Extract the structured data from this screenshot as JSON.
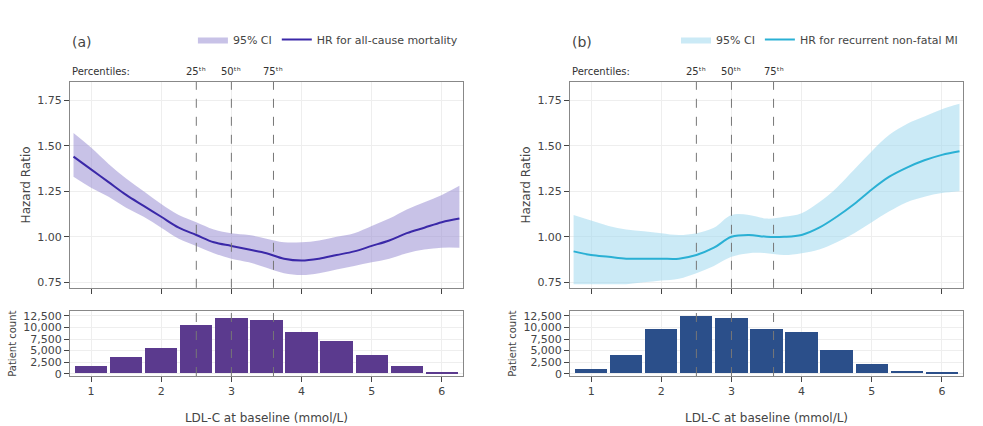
{
  "chart_data": [
    {
      "type": "line",
      "title": "(a)",
      "x": [
        0.75,
        1.0,
        1.25,
        1.5,
        1.75,
        2.0,
        2.25,
        2.5,
        2.75,
        3.0,
        3.25,
        3.5,
        3.75,
        4.0,
        4.25,
        4.5,
        4.75,
        5.0,
        5.25,
        5.5,
        5.75,
        6.0,
        6.25
      ],
      "series": [
        {
          "name": "HR for all-cause mortality",
          "color": "#3a28a8",
          "values": [
            1.44,
            1.37,
            1.3,
            1.23,
            1.17,
            1.11,
            1.05,
            1.01,
            0.97,
            0.95,
            0.93,
            0.91,
            0.88,
            0.87,
            0.88,
            0.9,
            0.92,
            0.95,
            0.98,
            1.02,
            1.05,
            1.08,
            1.1
          ],
          "ci_name": "95% CI",
          "ci_color": "#9b8fd4",
          "lower": [
            1.33,
            1.27,
            1.22,
            1.16,
            1.11,
            1.05,
            0.99,
            0.95,
            0.91,
            0.88,
            0.86,
            0.83,
            0.8,
            0.79,
            0.8,
            0.82,
            0.84,
            0.86,
            0.88,
            0.91,
            0.93,
            0.94,
            0.94
          ],
          "upper": [
            1.57,
            1.49,
            1.4,
            1.32,
            1.25,
            1.18,
            1.12,
            1.08,
            1.04,
            1.02,
            1.01,
            0.99,
            0.97,
            0.97,
            0.98,
            1.0,
            1.02,
            1.06,
            1.1,
            1.15,
            1.19,
            1.23,
            1.28
          ]
        }
      ],
      "ylabel": "Hazard Ratio",
      "xlim": [
        0.7,
        6.3
      ],
      "xticks": [
        1,
        2,
        3,
        4,
        5,
        6
      ],
      "ylim": [
        0.72,
        1.85
      ],
      "yticks": [
        0.75,
        {
          "value": 1.0,
          "label": "1.00"
        },
        1.25,
        {
          "value": 1.5,
          "label": "1.50"
        },
        1.75
      ],
      "tick_labels": "y",
      "grid": true,
      "legend": "top",
      "percentile_label": "Percentiles:",
      "percentiles": [
        {
          "value": 2.5,
          "label": "25ᵗʰ"
        },
        {
          "value": 3.0,
          "label": "50ᵗʰ"
        },
        {
          "value": 3.6,
          "label": "75ᵗʰ"
        }
      ]
    },
    {
      "type": "histogram",
      "bins": [
        0.75,
        1.25,
        1.75,
        2.25,
        2.75,
        3.25,
        3.75,
        4.25,
        4.75,
        5.25,
        5.75,
        6.25
      ],
      "values": [
        1500,
        3500,
        5500,
        10500,
        12000,
        11500,
        9000,
        7000,
        4000,
        1500,
        300
      ],
      "color": "#5b3a8e",
      "xlabel": "LDL-C at baseline (mmol/L)",
      "ylabel": "Patient count",
      "xlim": [
        0.7,
        6.3
      ],
      "xticks": [
        1,
        2,
        3,
        4,
        5,
        6
      ],
      "ylim": [
        -500,
        13500
      ],
      "yticks": [
        0,
        {
          "value": 2500,
          "label": "2,500"
        },
        {
          "value": 5000,
          "label": "5,000"
        },
        {
          "value": 7500,
          "label": "7,500"
        },
        {
          "value": 10000,
          "label": "10,000"
        },
        {
          "value": 12500,
          "label": "12,500"
        }
      ],
      "grid": true,
      "percentiles": [
        2.5,
        3.0,
        3.6
      ]
    },
    {
      "type": "line",
      "title": "(b)",
      "x": [
        0.75,
        1.0,
        1.25,
        1.5,
        1.75,
        2.0,
        2.25,
        2.5,
        2.75,
        3.0,
        3.25,
        3.5,
        3.75,
        4.0,
        4.25,
        4.5,
        4.75,
        5.0,
        5.25,
        5.5,
        5.75,
        6.0,
        6.25
      ],
      "series": [
        {
          "name": "HR for recurrent non-fatal MI",
          "color": "#2ab0d4",
          "values": [
            0.92,
            0.9,
            0.89,
            0.88,
            0.88,
            0.88,
            0.88,
            0.9,
            0.94,
            1.0,
            1.01,
            1.0,
            1.0,
            1.01,
            1.05,
            1.11,
            1.18,
            1.26,
            1.33,
            1.38,
            1.42,
            1.45,
            1.47
          ],
          "ci_name": "95% CI",
          "ci_color": "#a0d8ef",
          "lower": [
            0.74,
            0.74,
            0.74,
            0.74,
            0.75,
            0.76,
            0.77,
            0.8,
            0.84,
            0.89,
            0.91,
            0.91,
            0.9,
            0.91,
            0.93,
            0.97,
            1.02,
            1.08,
            1.14,
            1.19,
            1.22,
            1.24,
            1.25
          ],
          "upper": [
            1.12,
            1.09,
            1.06,
            1.04,
            1.03,
            1.02,
            1.01,
            1.02,
            1.05,
            1.12,
            1.12,
            1.1,
            1.11,
            1.13,
            1.19,
            1.27,
            1.37,
            1.47,
            1.56,
            1.62,
            1.66,
            1.7,
            1.73
          ]
        }
      ],
      "ylabel": "Hazard Ratio",
      "xlim": [
        0.7,
        6.3
      ],
      "xticks": [
        1,
        2,
        3,
        4,
        5,
        6
      ],
      "ylim": [
        0.72,
        1.85
      ],
      "yticks": [
        0.75,
        {
          "value": 1.0,
          "label": "1.00"
        },
        1.25,
        {
          "value": 1.5,
          "label": "1.50"
        },
        1.75
      ],
      "tick_labels": "y",
      "grid": true,
      "legend": "top",
      "percentile_label": "Percentiles:",
      "percentiles": [
        {
          "value": 2.5,
          "label": "25ᵗʰ"
        },
        {
          "value": 3.0,
          "label": "50ᵗʰ"
        },
        {
          "value": 3.6,
          "label": "75ᵗʰ"
        }
      ]
    },
    {
      "type": "histogram",
      "bins": [
        0.75,
        1.25,
        1.75,
        2.25,
        2.75,
        3.25,
        3.75,
        4.25,
        4.75,
        5.25,
        5.75,
        6.25
      ],
      "values": [
        1000,
        4000,
        9500,
        12500,
        12000,
        9500,
        9000,
        5000,
        2000,
        500,
        100
      ],
      "color": "#2b4f8a",
      "xlabel": "LDL-C at baseline (mmol/L)",
      "ylabel": "Patient count",
      "xlim": [
        0.7,
        6.3
      ],
      "xticks": [
        1,
        2,
        3,
        4,
        5,
        6
      ],
      "ylim": [
        -500,
        13500
      ],
      "yticks": [
        0,
        {
          "value": 2500,
          "label": "2,500"
        },
        {
          "value": 5000,
          "label": "5,000"
        },
        {
          "value": 7500,
          "label": "7,500"
        },
        {
          "value": 10000,
          "label": "10,000"
        },
        {
          "value": 12500,
          "label": "12,500"
        }
      ],
      "grid": true,
      "percentiles": [
        2.5,
        3.0,
        3.6
      ]
    }
  ]
}
